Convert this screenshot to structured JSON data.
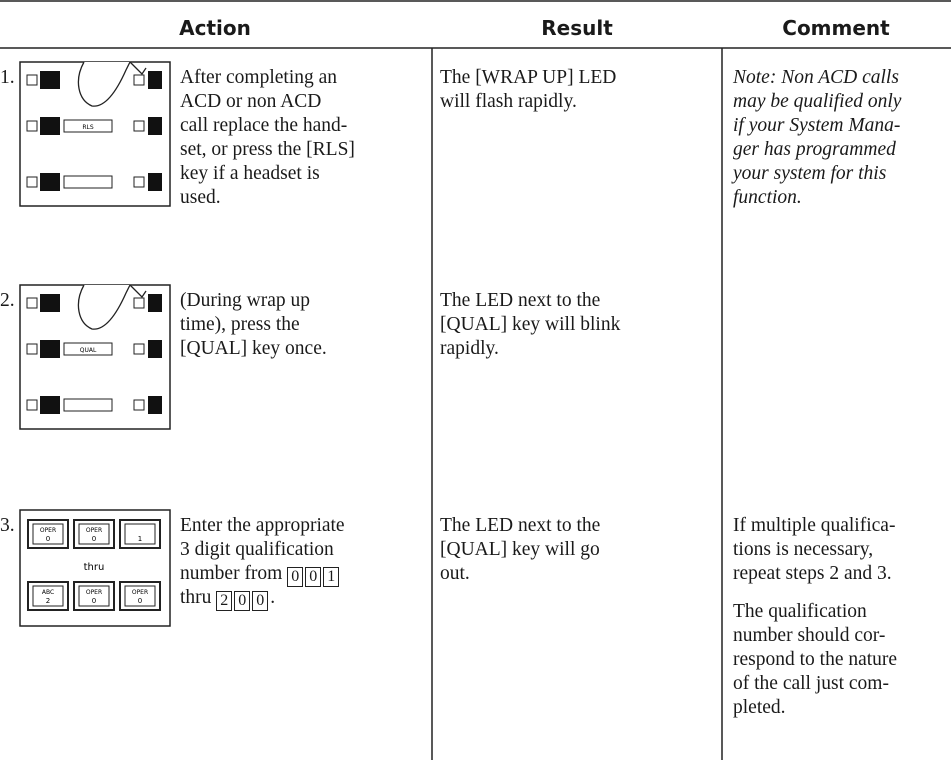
{
  "header": {
    "columns": [
      "Action",
      "Result",
      "Comment"
    ]
  },
  "table": {
    "rows": [
      {
        "step": "1.",
        "illustration": {
          "key": "RLS"
        },
        "action": [
          "After completing an",
          "ACD or non ACD",
          "call replace the hand-",
          "set, or press the [RLS]",
          "key if a headset is",
          "used."
        ],
        "result": [
          "The [WRAP UP] LED",
          "will flash rapidly."
        ],
        "comment": [
          [
            "Note: Non ACD calls",
            "may be qualified only",
            "if your System Mana-",
            "ger has programmed",
            "your system for this",
            "function."
          ]
        ]
      },
      {
        "step": "2.",
        "illustration": {
          "key": "QUAL"
        },
        "action": [
          "(During wrap up",
          "time), press the",
          "[QUAL] key once."
        ],
        "result": [
          "The LED next to the",
          "[QUAL] key will blink",
          "rapidly."
        ],
        "comment": []
      },
      {
        "step": "3.",
        "illustration": {
          "top": [
            {
              "top": "OPER",
              "bottom": "0"
            },
            {
              "top": "OPER",
              "bottom": "0"
            },
            {
              "top": "",
              "bottom": "1"
            }
          ],
          "middle": "thru",
          "bottom": [
            {
              "top": "ABC",
              "bottom": "2"
            },
            {
              "top": "OPER",
              "bottom": "0"
            },
            {
              "top": "OPER",
              "bottom": "0"
            }
          ]
        },
        "action": [
          "Enter the appropriate",
          "3 digit qualification"
        ],
        "action_keys": [
          {
            "text": "number from",
            "keys": [
              "0",
              "0",
              "1"
            ],
            "end": ""
          },
          {
            "text": "thru",
            "keys": [
              "2",
              "0",
              "0"
            ],
            "end": "."
          }
        ],
        "result": [
          "The LED next to the",
          "[QUAL] key will go",
          "out."
        ],
        "comment": [
          [
            "If multiple qualifica-",
            "tions is necessary,",
            "repeat steps 2 and 3."
          ],
          [
            "The qualification",
            "number should cor-",
            "respond to the nature",
            "of the call just com-",
            "pleted."
          ]
        ]
      }
    ]
  }
}
